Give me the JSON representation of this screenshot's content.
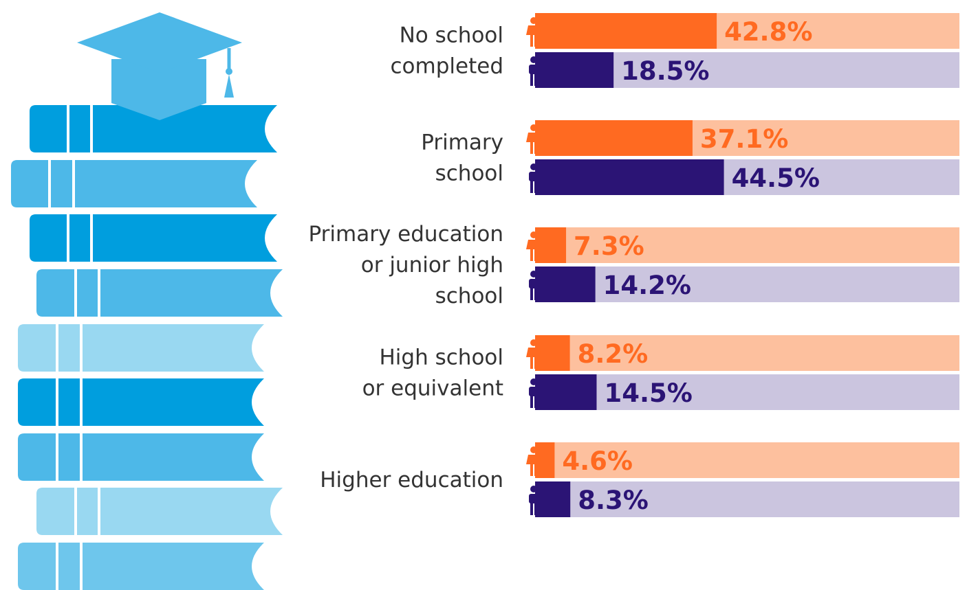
{
  "chart_data": {
    "type": "bar",
    "orientation": "horizontal",
    "xlim": [
      0,
      100
    ],
    "categories": [
      [
        "No school",
        "completed"
      ],
      [
        "Primary",
        "school"
      ],
      [
        "Primary education",
        "or junior high",
        "school"
      ],
      [
        "High school",
        "or equivalent"
      ],
      [
        "Higher education"
      ]
    ],
    "series": [
      {
        "icon": "female-person-icon",
        "color": "#FF6A21",
        "track_color": "#FDC09E",
        "text_color": "#FF6A21",
        "values": [
          42.8,
          37.1,
          7.3,
          8.2,
          4.6
        ],
        "labels": [
          "42.8%",
          "37.1%",
          "7.3%",
          "8.2%",
          "4.6%"
        ]
      },
      {
        "icon": "male-person-icon",
        "color": "#2B1475",
        "track_color": "#CBC5DF",
        "text_color": "#2B1475",
        "values": [
          18.5,
          44.5,
          14.2,
          14.5,
          8.3
        ],
        "labels": [
          "18.5%",
          "44.5%",
          "14.2%",
          "14.5%",
          "8.3%"
        ]
      }
    ]
  },
  "illustration": {
    "icons": [
      "graduation-cap-icon",
      "book-stack-icon"
    ],
    "colors": {
      "dark": "#009EDE",
      "medium": "#4DB8E8",
      "light": "#99D8F1",
      "mid_light": "#6EC6EC"
    }
  }
}
